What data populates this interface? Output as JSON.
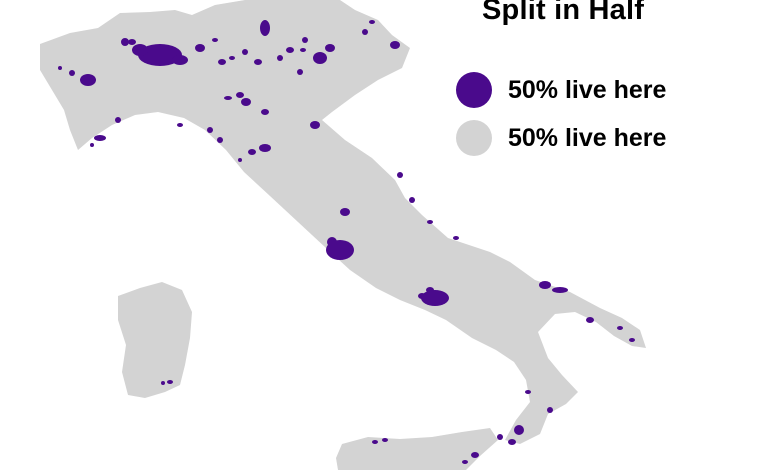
{
  "title": "Split in Half",
  "colors": {
    "urban": "#4a0a8c",
    "rest": "#d3d3d3",
    "background": "#ffffff"
  },
  "legend": {
    "items": [
      {
        "label": "50% live here",
        "color": "#4a0a8c"
      },
      {
        "label": "50% live here",
        "color": "#d3d3d3"
      }
    ]
  }
}
